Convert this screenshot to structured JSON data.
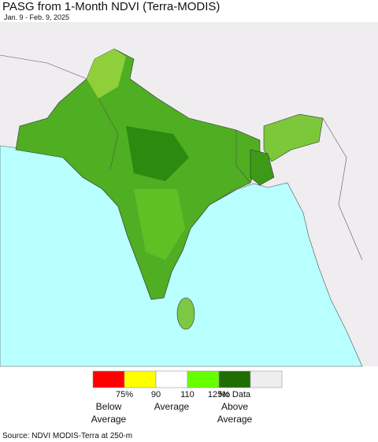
{
  "header": {
    "title": "PASG from 1-Month NDVI (Terra-MODIS)",
    "subtitle": "Jan. 9 - Feb. 9, 2025"
  },
  "legend": {
    "colors": [
      "#ff0000",
      "#ffff00",
      "#ffffff",
      "#66ff00",
      "#1f6e00",
      "#efedf0"
    ],
    "tick_labels": [
      "75%",
      "90",
      "110",
      "125%",
      "No Data"
    ],
    "class_labels": [
      [
        "Below",
        "Average"
      ],
      [
        "Average"
      ],
      [
        "Above",
        "Average"
      ]
    ]
  },
  "source": "Source: NDVI MODIS-Terra at 250-m"
}
